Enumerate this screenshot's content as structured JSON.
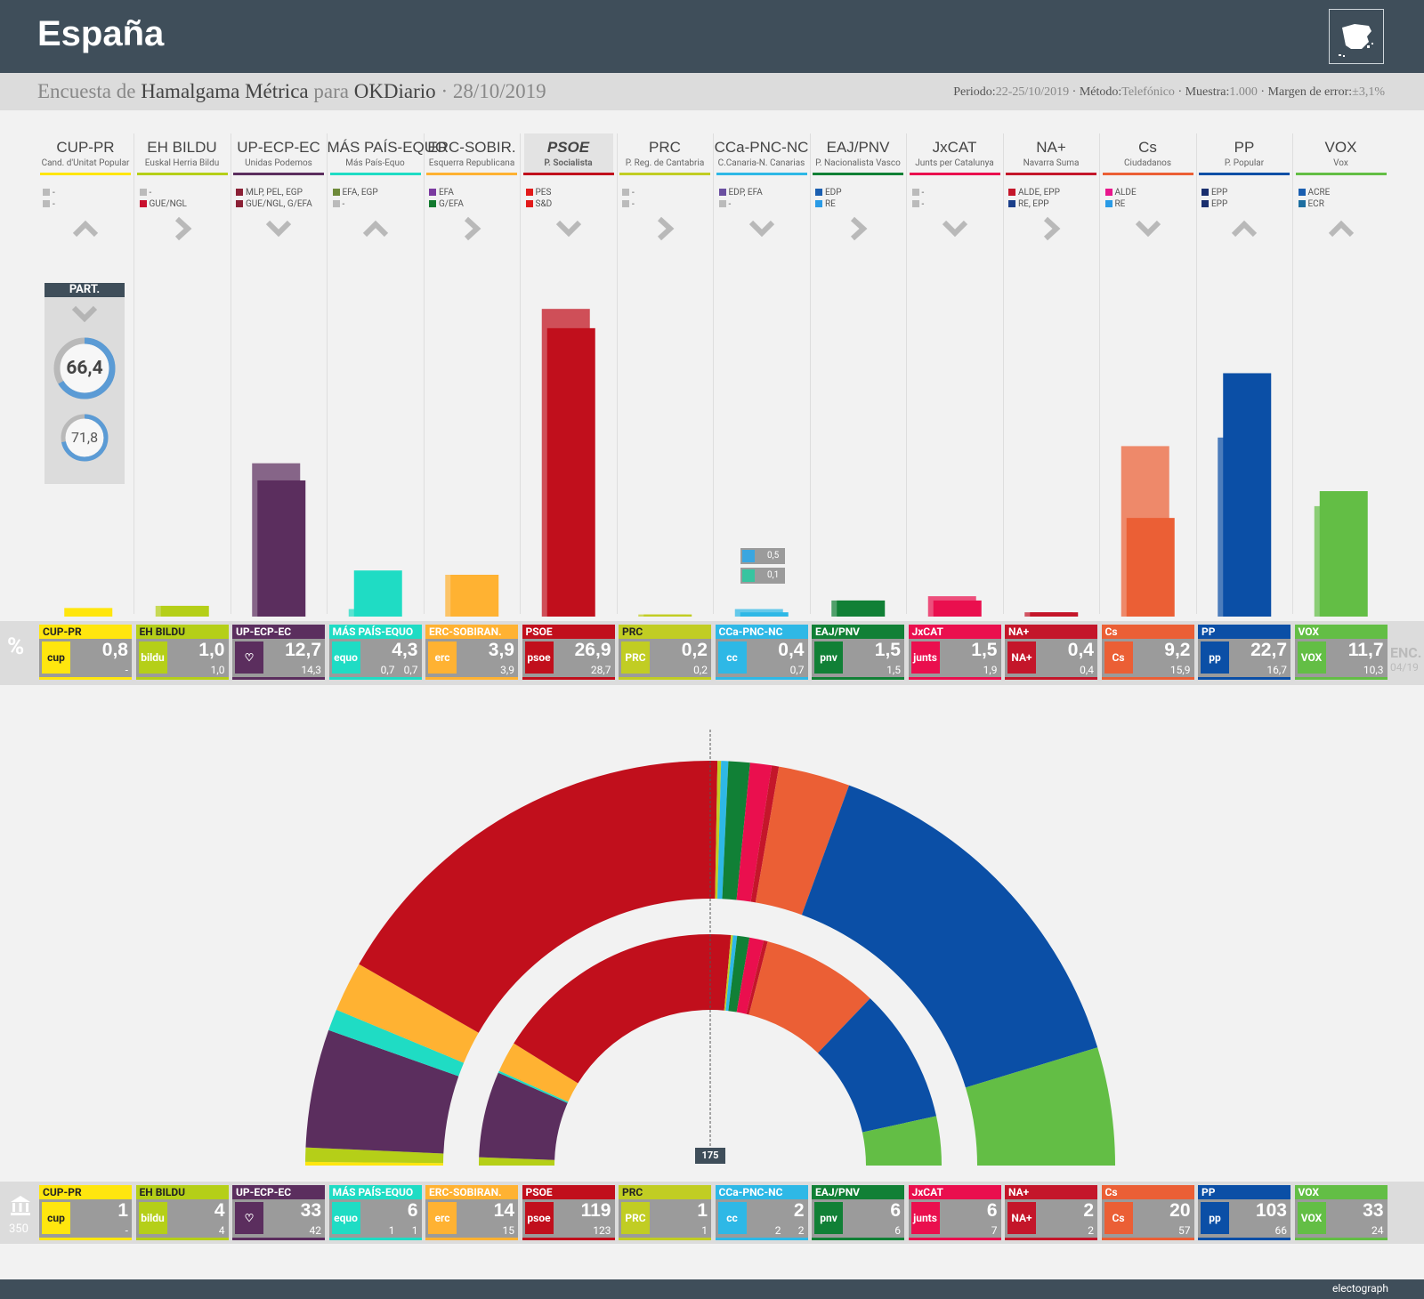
{
  "header": {
    "country": "España"
  },
  "survey": {
    "prefix": "Encuesta de",
    "pollster": "Hamalgama Métrica",
    "para": "para",
    "media": "OKDiario",
    "date": "· 28/10/2019"
  },
  "meta": {
    "periodo_label": "Periodo:",
    "periodo": "22-25/10/2019",
    "metodo_label": "· Método:",
    "metodo": "Telefónico",
    "muestra_label": "· Muestra:",
    "muestra": "1.000",
    "margen_label": "· Margen de error:",
    "margen": "±3,1%"
  },
  "participation": {
    "label": "PART.",
    "current": "66,4",
    "previous": "71,8",
    "current_value": 66.4,
    "previous_value": 71.8,
    "trend": "down"
  },
  "vote_label": "%",
  "enc_label": "ENC.",
  "enc_date": "04/19",
  "seat_total": "350",
  "majority": "175",
  "mini_boxes": [
    {
      "value": "0,5"
    },
    {
      "value": "0,1"
    }
  ],
  "brand": "electograph",
  "chart_data": {
    "type": "bar",
    "categories": [
      "CUP-PR",
      "EH BILDU",
      "UP-ECP-EC",
      "MÁS PAÍS-EQUO",
      "ERC-SOBIR.",
      "PSOE",
      "PRC",
      "CCa-PNC-NC",
      "EAJ/PNV",
      "JxCAT",
      "NA+",
      "Cs",
      "PP",
      "VOX"
    ],
    "series": [
      {
        "name": "",
        "values": [
          0.8,
          1.0,
          12.7,
          4.3,
          3.9,
          26.9,
          0.2,
          0.4,
          1.5,
          1.5,
          0.4,
          9.2,
          22.7,
          11.7
        ]
      },
      {
        "name": "",
        "values": [
          0,
          1.0,
          14.3,
          0.7,
          3.9,
          28.7,
          0.2,
          0.7,
          1.5,
          1.9,
          0.4,
          15.9,
          16.7,
          10.3
        ]
      }
    ],
    "seats": [
      1,
      4,
      33,
      6,
      14,
      119,
      1,
      2,
      6,
      6,
      2,
      20,
      103,
      33
    ],
    "seats_prev": [
      0,
      4,
      42,
      1,
      15,
      123,
      1,
      2,
      6,
      7,
      2,
      57,
      66,
      24
    ],
    "ylim": [
      0,
      30
    ]
  },
  "parties": [
    {
      "name": "CUP-PR",
      "full": "Cand. d'Unitat Popular",
      "card": "CUP-PR",
      "color": "#ffe60e",
      "logo": "cup",
      "groups": [
        {
          "c": "#bbbbbb",
          "t": "-"
        },
        {
          "c": "#bbbbbb",
          "t": "-"
        }
      ],
      "trend": "up",
      "vote": "0,8",
      "vote_prev": "-",
      "seats": "1",
      "seats_prev": "-",
      "extra": "",
      "extra_seats": ""
    },
    {
      "name": "EH BILDU",
      "full": "Euskal Herria Bildu",
      "card": "EH BILDU",
      "color": "#b5cf18",
      "logo": "bildu",
      "groups": [
        {
          "c": "#bbbbbb",
          "t": "-"
        },
        {
          "c": "#c8102e",
          "t": "GUE/NGL"
        }
      ],
      "trend": "right",
      "vote": "1,0",
      "vote_prev": "1,0",
      "seats": "4",
      "seats_prev": "4",
      "extra": "",
      "extra_seats": ""
    },
    {
      "name": "UP-ECP-EC",
      "full": "Unidas Podemos",
      "card": "UP-ECP-EC",
      "color": "#5b2e5e",
      "logo": "♡",
      "groups": [
        {
          "c": "#8b2035",
          "t": "MLP, PEL, EGP"
        },
        {
          "c": "#8b2035",
          "t": "GUE/NGL, G/EFA"
        }
      ],
      "trend": "down",
      "vote": "12,7",
      "vote_prev": "14,3",
      "seats": "33",
      "seats_prev": "42",
      "extra": "",
      "extra_seats": ""
    },
    {
      "name": "MÁS PAÍS-EQUO",
      "full": "Más País-Equo",
      "card": "MÁS PAÍS-EQUO",
      "color": "#1fdcc4",
      "logo": "equo",
      "groups": [
        {
          "c": "#6e8a3a",
          "t": "EFA, EGP"
        },
        {
          "c": "#bbbbbb",
          "t": "-"
        }
      ],
      "trend": "up",
      "vote": "4,3",
      "vote_prev": "0,7",
      "seats": "6",
      "seats_prev": "1",
      "extra": "",
      "extra_seats": ""
    },
    {
      "name": "ERC-SOBIR.",
      "full": "Esquerra Republicana",
      "card": "ERC-SOBIRAN.",
      "color": "#ffb232",
      "logo": "erc",
      "groups": [
        {
          "c": "#7b3aa0",
          "t": "EFA"
        },
        {
          "c": "#127a2e",
          "t": "G/EFA"
        }
      ],
      "trend": "right",
      "vote": "3,9",
      "vote_prev": "3,9",
      "seats": "14",
      "seats_prev": "15",
      "extra": "",
      "extra_seats": ""
    },
    {
      "name": "PSOE",
      "full": "P. Socialista",
      "card": "PSOE",
      "color": "#c10f1c",
      "logo": "psoe",
      "groups": [
        {
          "c": "#e21a1a",
          "t": "PES"
        },
        {
          "c": "#e21a1a",
          "t": "S&D"
        }
      ],
      "trend": "down",
      "vote": "26,9",
      "vote_prev": "28,7",
      "seats": "119",
      "seats_prev": "123",
      "extra": "",
      "extra_seats": ""
    },
    {
      "name": "PRC",
      "full": "P. Reg. de Cantabria",
      "card": "PRC",
      "color": "#c1cd23",
      "logo": "PRC",
      "groups": [
        {
          "c": "#bbbbbb",
          "t": "-"
        },
        {
          "c": "#bbbbbb",
          "t": "-"
        }
      ],
      "trend": "right",
      "vote": "0,2",
      "vote_prev": "0,2",
      "seats": "1",
      "seats_prev": "1",
      "extra": "",
      "extra_seats": ""
    },
    {
      "name": "CCa-PNC-NC",
      "full": "C.Canaria-N. Canarias",
      "card": "CCa-PNC-NC",
      "color": "#2eb8e6",
      "logo": "cc",
      "groups": [
        {
          "c": "#6a4fa0",
          "t": "EDP, EFA"
        },
        {
          "c": "#bbbbbb",
          "t": "-"
        }
      ],
      "trend": "down",
      "vote": "0,4",
      "vote_prev": "0,7",
      "seats": "2",
      "seats_prev": "2",
      "extra": "",
      "extra_seats": ""
    },
    {
      "name": "EAJ/PNV",
      "full": "P. Nacionalista Vasco",
      "card": "EAJ/PNV",
      "color": "#118036",
      "logo": "pnv",
      "groups": [
        {
          "c": "#1b5fb0",
          "t": "EDP"
        },
        {
          "c": "#2a9be6",
          "t": "RE"
        }
      ],
      "trend": "right",
      "vote": "1,5",
      "vote_prev": "1,5",
      "seats": "6",
      "seats_prev": "6",
      "extra": "",
      "extra_seats": ""
    },
    {
      "name": "JxCAT",
      "full": "Junts per Catalunya",
      "card": "JxCAT",
      "color": "#ea0f4e",
      "logo": "junts",
      "groups": [
        {
          "c": "#bbbbbb",
          "t": "-"
        },
        {
          "c": "#bbbbbb",
          "t": "-"
        }
      ],
      "trend": "down",
      "vote": "1,5",
      "vote_prev": "1,9",
      "seats": "6",
      "seats_prev": "7",
      "extra": "",
      "extra_seats": ""
    },
    {
      "name": "NA+",
      "full": "Navarra Suma",
      "card": "NA+",
      "color": "#c4162a",
      "logo": "NA+",
      "groups": [
        {
          "c": "#c4162a",
          "t": "ALDE, EPP"
        },
        {
          "c": "#1b3f8a",
          "t": "RE, EPP"
        }
      ],
      "trend": "right",
      "vote": "0,4",
      "vote_prev": "0,4",
      "seats": "2",
      "seats_prev": "2",
      "extra": "",
      "extra_seats": ""
    },
    {
      "name": "Cs",
      "full": "Ciudadanos",
      "card": "Cs",
      "color": "#eb5f35",
      "logo": "Cs",
      "groups": [
        {
          "c": "#e8168c",
          "t": "ALDE"
        },
        {
          "c": "#2a9be6",
          "t": "RE"
        }
      ],
      "trend": "down",
      "vote": "9,2",
      "vote_prev": "15,9",
      "seats": "20",
      "seats_prev": "57",
      "extra": "",
      "extra_seats": ""
    },
    {
      "name": "PP",
      "full": "P. Popular",
      "card": "PP",
      "color": "#0b4fa6",
      "logo": "pp",
      "groups": [
        {
          "c": "#1a2f6e",
          "t": "EPP"
        },
        {
          "c": "#1a2f6e",
          "t": "EPP"
        }
      ],
      "trend": "up",
      "vote": "22,7",
      "vote_prev": "16,7",
      "seats": "103",
      "seats_prev": "66",
      "extra": "",
      "extra_seats": ""
    },
    {
      "name": "VOX",
      "full": "Vox",
      "card": "VOX",
      "color": "#63be45",
      "logo": "VOX",
      "groups": [
        {
          "c": "#1b5fb0",
          "t": "ACRE"
        },
        {
          "c": "#1d6ea0",
          "t": "ECR"
        }
      ],
      "trend": "up",
      "vote": "11,7",
      "vote_prev": "10,3",
      "seats": "33",
      "seats_prev": "24",
      "extra": "",
      "extra_seats": ""
    }
  ],
  "extras": {
    "mp_vote": "0,7",
    "mp_seat": "1",
    "cc_seat": "2"
  }
}
